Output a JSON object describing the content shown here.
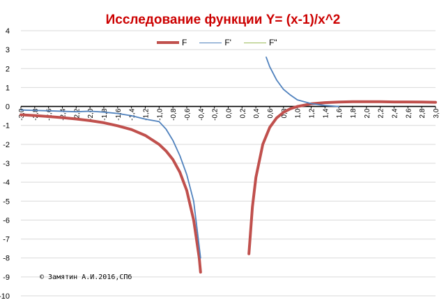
{
  "chart_data": {
    "type": "line",
    "title": "Исследование функции Y= (x-1)/x^2",
    "colors": {
      "title": "#cc0000",
      "F": "#c0504d",
      "F_prime": "#4f81bd",
      "F_double_prime": "#9bbb59"
    },
    "legend_position": "top",
    "grid": true,
    "ylim": [
      -10,
      4
    ],
    "yticks": [
      "4",
      "3",
      "2",
      "1",
      "0",
      "-1",
      "-2",
      "-3",
      "-4",
      "-5",
      "-6",
      "-7",
      "-8",
      "-9",
      "-10"
    ],
    "xlim": [
      -3.0,
      3.0
    ],
    "xticks": [
      "-3,0",
      "-2,8",
      "-2,6",
      "-2,4",
      "-2,2",
      "-2,0",
      "-1,8",
      "-1,6",
      "-1,4",
      "-1,2",
      "-1,0",
      "-0,8",
      "-0,6",
      "-0,4",
      "-0,2",
      "0,0",
      "0,2",
      "0,4",
      "0,6",
      "0,8",
      "1,0",
      "1,2",
      "1,4",
      "1,6",
      "1,8",
      "2,0",
      "2,2",
      "2,4",
      "2,6",
      "2,8",
      "3,0"
    ],
    "series": [
      {
        "name": "F",
        "points": [
          [
            -3.0,
            -0.44
          ],
          [
            -2.8,
            -0.48
          ],
          [
            -2.6,
            -0.53
          ],
          [
            -2.4,
            -0.59
          ],
          [
            -2.2,
            -0.66
          ],
          [
            -2.0,
            -0.75
          ],
          [
            -1.8,
            -0.86
          ],
          [
            -1.6,
            -1.02
          ],
          [
            -1.4,
            -1.22
          ],
          [
            -1.2,
            -1.53
          ],
          [
            -1.0,
            -2.0
          ],
          [
            -0.9,
            -2.35
          ],
          [
            -0.8,
            -2.81
          ],
          [
            -0.7,
            -3.47
          ],
          [
            -0.6,
            -4.44
          ],
          [
            -0.5,
            -6.0
          ],
          [
            -0.42,
            -8.0
          ],
          [
            -0.4,
            -8.75
          ],
          null,
          [
            0.3,
            -7.78
          ],
          [
            0.35,
            -5.31
          ],
          [
            0.4,
            -3.75
          ],
          [
            0.5,
            -2.0
          ],
          [
            0.6,
            -1.11
          ],
          [
            0.7,
            -0.61
          ],
          [
            0.8,
            -0.31
          ],
          [
            0.9,
            -0.12
          ],
          [
            1.0,
            0.0
          ],
          [
            1.2,
            0.14
          ],
          [
            1.4,
            0.2
          ],
          [
            1.6,
            0.23
          ],
          [
            1.8,
            0.25
          ],
          [
            2.0,
            0.25
          ],
          [
            2.2,
            0.25
          ],
          [
            2.4,
            0.24
          ],
          [
            2.6,
            0.24
          ],
          [
            2.8,
            0.23
          ],
          [
            3.0,
            0.22
          ]
        ]
      },
      {
        "name": "F'",
        "points": [
          [
            -3.0,
            -0.19
          ],
          [
            -2.6,
            -0.23
          ],
          [
            -2.2,
            -0.28
          ],
          [
            -2.0,
            -0.25
          ],
          [
            -1.8,
            -0.3
          ],
          [
            -1.6,
            -0.37
          ],
          [
            -1.4,
            -0.49
          ],
          [
            -1.2,
            -0.67
          ],
          [
            -1.0,
            -0.8
          ],
          [
            -0.9,
            -1.2
          ],
          [
            -0.8,
            -1.8
          ],
          [
            -0.7,
            -2.6
          ],
          [
            -0.6,
            -3.6
          ],
          [
            -0.5,
            -5.0
          ],
          [
            -0.45,
            -6.5
          ],
          [
            -0.4,
            -8.0
          ],
          null,
          [
            0.55,
            2.6
          ],
          [
            0.6,
            2.1
          ],
          [
            0.7,
            1.4
          ],
          [
            0.8,
            0.9
          ],
          [
            0.9,
            0.6
          ],
          [
            1.0,
            0.35
          ],
          [
            1.2,
            0.15
          ],
          [
            1.4,
            0.05
          ],
          [
            1.6,
            0.0
          ]
        ]
      },
      {
        "name": "F\"",
        "points": []
      }
    ]
  },
  "copyright": "© Замятин А.И.2016,СПб"
}
